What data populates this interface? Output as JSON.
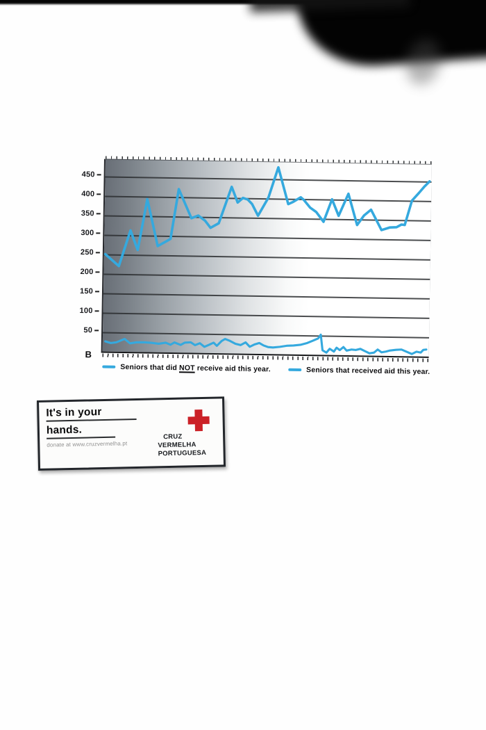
{
  "colors": {
    "accent_blue": "#35a9de",
    "cross_red": "#cb2127",
    "grid_line": "#2c2e30",
    "ink": "#111111"
  },
  "chart_data": {
    "type": "line",
    "title": "",
    "xlabel": "",
    "ylabel": "",
    "origin_label": "B",
    "ylim": [
      0,
      493
    ],
    "yticks": [
      50,
      100,
      150,
      200,
      250,
      300,
      350,
      400,
      450
    ],
    "grid": "horizontal",
    "legend_position": "bottom",
    "x_unit": "percent-of-axis",
    "series": [
      {
        "name": "Seniors that did NOT receive aid this year.",
        "color": "#35a9de",
        "points": [
          [
            0.4,
            250
          ],
          [
            4.6,
            220
          ],
          [
            8.0,
            312
          ],
          [
            10.3,
            262
          ],
          [
            13.0,
            393
          ],
          [
            16.4,
            273
          ],
          [
            19.3,
            287
          ],
          [
            20.3,
            292
          ],
          [
            22.6,
            420
          ],
          [
            26.6,
            346
          ],
          [
            28.7,
            353
          ],
          [
            30.8,
            340
          ],
          [
            32.5,
            322
          ],
          [
            35.0,
            334
          ],
          [
            38.8,
            428
          ],
          [
            40.7,
            388
          ],
          [
            42.3,
            400
          ],
          [
            43.8,
            396
          ],
          [
            45.1,
            385
          ],
          [
            47.0,
            355
          ],
          [
            50.1,
            402
          ],
          [
            53.0,
            480
          ],
          [
            56.2,
            386
          ],
          [
            57.7,
            392
          ],
          [
            60.0,
            404
          ],
          [
            61.0,
            397
          ],
          [
            62.9,
            378
          ],
          [
            64.8,
            367
          ],
          [
            67.1,
            342
          ],
          [
            69.6,
            400
          ],
          [
            71.7,
            358
          ],
          [
            74.6,
            415
          ],
          [
            77.4,
            335
          ],
          [
            79.5,
            360
          ],
          [
            81.6,
            375
          ],
          [
            84.9,
            323
          ],
          [
            87.4,
            330
          ],
          [
            89.5,
            331
          ],
          [
            91.0,
            338
          ],
          [
            92.0,
            337
          ],
          [
            94.1,
            400
          ],
          [
            96.2,
            420
          ],
          [
            97.9,
            437
          ],
          [
            99.4,
            450
          ]
        ]
      },
      {
        "name": "Seniors that received aid this year.",
        "color": "#35a9de",
        "points": [
          [
            0.8,
            26
          ],
          [
            2.5,
            22
          ],
          [
            4.2,
            24
          ],
          [
            6.7,
            33
          ],
          [
            8.4,
            22
          ],
          [
            10.5,
            25
          ],
          [
            13.0,
            25
          ],
          [
            15.1,
            24
          ],
          [
            17.2,
            22
          ],
          [
            19.3,
            25
          ],
          [
            20.8,
            20
          ],
          [
            22.0,
            26
          ],
          [
            23.9,
            20
          ],
          [
            25.2,
            26
          ],
          [
            27.0,
            27
          ],
          [
            28.3,
            20
          ],
          [
            29.8,
            25
          ],
          [
            31.2,
            16
          ],
          [
            32.5,
            21
          ],
          [
            34.0,
            27
          ],
          [
            35.0,
            19
          ],
          [
            36.5,
            32
          ],
          [
            37.5,
            37
          ],
          [
            38.8,
            33
          ],
          [
            40.7,
            25
          ],
          [
            42.3,
            22
          ],
          [
            43.8,
            29
          ],
          [
            45.1,
            18
          ],
          [
            46.5,
            24
          ],
          [
            48.0,
            28
          ],
          [
            49.3,
            22
          ],
          [
            50.7,
            18
          ],
          [
            52.2,
            17
          ],
          [
            54.3,
            19
          ],
          [
            56.4,
            22
          ],
          [
            58.5,
            23
          ],
          [
            60.6,
            25
          ],
          [
            62.7,
            30
          ],
          [
            64.4,
            36
          ],
          [
            66.0,
            42
          ],
          [
            66.8,
            52
          ],
          [
            67.4,
            12
          ],
          [
            68.6,
            6
          ],
          [
            69.6,
            16
          ],
          [
            70.9,
            9
          ],
          [
            71.7,
            19
          ],
          [
            72.7,
            13
          ],
          [
            73.8,
            21
          ],
          [
            74.8,
            12
          ],
          [
            76.3,
            15
          ],
          [
            77.6,
            14
          ],
          [
            79.0,
            17
          ],
          [
            80.5,
            11
          ],
          [
            81.8,
            6
          ],
          [
            83.2,
            8
          ],
          [
            84.3,
            16
          ],
          [
            85.5,
            9
          ],
          [
            86.8,
            11
          ],
          [
            88.1,
            14
          ],
          [
            89.9,
            16
          ],
          [
            91.6,
            17
          ],
          [
            93.3,
            11
          ],
          [
            94.8,
            6
          ],
          [
            96.2,
            12
          ],
          [
            97.5,
            10
          ],
          [
            98.3,
            17
          ],
          [
            99.2,
            18
          ]
        ]
      }
    ]
  },
  "legend": {
    "item1": {
      "pre": "Seniors that did ",
      "emph": "NOT",
      "post": " receive aid this year."
    },
    "item2": {
      "label": "Seniors that received aid this year."
    }
  },
  "card": {
    "headline_line1": "It's in your",
    "headline_line2": "hands.",
    "donate_text": "donate at www.cruzvermelha.pt",
    "logo_lines": [
      "CRUZ",
      "VERMELHA",
      "PORTUGUESA"
    ]
  }
}
